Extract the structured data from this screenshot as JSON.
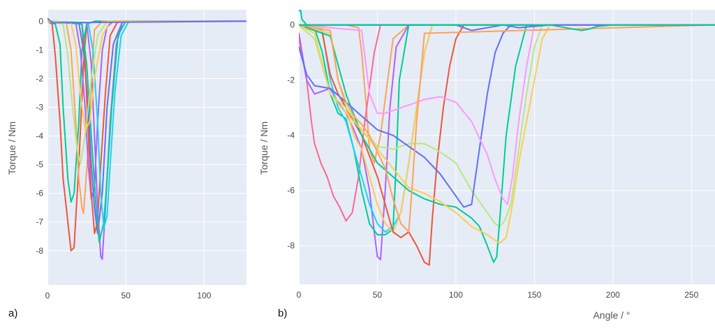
{
  "figure": {
    "panels": [
      {
        "tag": "a)"
      },
      {
        "tag": "b)"
      }
    ]
  },
  "colors": {
    "plot_bg": "#e5ecf6",
    "grid": "#ffffff",
    "palette": [
      "#636efa",
      "#ef553b",
      "#00cc96",
      "#ab63fa",
      "#ffa15a",
      "#19d3f3",
      "#ff6692",
      "#b6e880",
      "#ff97ff",
      "#fecb52"
    ]
  },
  "chart_data": [
    {
      "type": "line",
      "panel": "a)",
      "title": "",
      "xlabel": "",
      "ylabel": "Torque / Nm",
      "xlim": [
        0,
        127
      ],
      "ylim": [
        -9.2,
        0.4
      ],
      "xticks": [
        0,
        50,
        100
      ],
      "yticks": [
        0,
        -1,
        -2,
        -3,
        -4,
        -5,
        -6,
        -7,
        -8
      ],
      "grid": true,
      "legend": "none",
      "series": [
        {
          "color": "#ef553b",
          "x": [
            0,
            3,
            5,
            8,
            10,
            13,
            15,
            17,
            20,
            23,
            25,
            30,
            60,
            127
          ],
          "y": [
            0,
            -0.1,
            -1.2,
            -3.5,
            -5.5,
            -7,
            -8,
            -7.9,
            -5,
            -1.5,
            -0.1,
            0,
            0,
            0
          ]
        },
        {
          "color": "#00cc96",
          "x": [
            0,
            5,
            8,
            10,
            13,
            15,
            17,
            20,
            22,
            25,
            30,
            60,
            127
          ],
          "y": [
            0,
            -0.1,
            -0.8,
            -3,
            -5.5,
            -6.3,
            -6,
            -3.5,
            -1,
            -0.1,
            0,
            0,
            0
          ]
        },
        {
          "color": "#ffa15a",
          "x": [
            0,
            12,
            15,
            18,
            20,
            22,
            23,
            26,
            28,
            30,
            35,
            60,
            127
          ],
          "y": [
            0,
            -0.05,
            -1,
            -3.5,
            -5.5,
            -6.5,
            -6.7,
            -4.5,
            -2,
            -0.3,
            0,
            0,
            0
          ]
        },
        {
          "color": "#ab63fa",
          "x": [
            0,
            18,
            21,
            24,
            26,
            28,
            30,
            32,
            35,
            38,
            42,
            60,
            127
          ],
          "y": [
            0,
            -0.05,
            -1,
            -3,
            -5,
            -6.2,
            -5.8,
            -3.5,
            -1,
            -0.2,
            0,
            0,
            0
          ]
        },
        {
          "color": "#636efa",
          "x": [
            0,
            20,
            23,
            26,
            28,
            30,
            32,
            35,
            38,
            42,
            48,
            60,
            127
          ],
          "y": [
            0,
            -0.05,
            -1,
            -3,
            -5,
            -6.5,
            -7.4,
            -6,
            -3,
            -0.8,
            0,
            0,
            0
          ]
        },
        {
          "color": "#ef553b",
          "x": [
            0,
            22,
            24,
            26,
            28,
            30,
            32,
            34,
            37,
            40,
            45,
            60,
            127
          ],
          "y": [
            0,
            -0.1,
            -1.5,
            -3.8,
            -6,
            -7.4,
            -7,
            -5,
            -2.5,
            -0.5,
            0,
            0,
            0
          ]
        },
        {
          "color": "#ab63fa",
          "x": [
            0,
            25,
            28,
            30,
            32,
            34,
            35,
            37,
            40,
            44,
            48,
            60,
            127
          ],
          "y": [
            0,
            -0.05,
            -1.5,
            -4,
            -6.5,
            -8.2,
            -8.3,
            -6.5,
            -3.5,
            -0.8,
            0,
            0,
            0
          ]
        },
        {
          "color": "#00cc96",
          "x": [
            0,
            22,
            25,
            28,
            31,
            33,
            36,
            38,
            41,
            45,
            50,
            60,
            127
          ],
          "y": [
            0,
            -0.1,
            -1.5,
            -4,
            -6.5,
            -7.7,
            -7,
            -5.5,
            -3,
            -0.5,
            0,
            0,
            0
          ]
        },
        {
          "color": "#19d3f3",
          "x": [
            0,
            26,
            29,
            32,
            34,
            36,
            38,
            40,
            43,
            47,
            52,
            60,
            127
          ],
          "y": [
            0,
            -0.05,
            -1,
            -3.5,
            -6,
            -7.2,
            -6.8,
            -5,
            -2.5,
            -0.5,
            0,
            0,
            0
          ]
        },
        {
          "color": "#b6e880",
          "x": [
            0,
            10,
            13,
            16,
            19,
            21,
            24,
            28,
            32,
            38,
            127
          ],
          "y": [
            0,
            -0.1,
            -1.2,
            -3,
            -4.5,
            -5,
            -4,
            -2,
            -0.5,
            0,
            0
          ]
        },
        {
          "color": "#fecb52",
          "x": [
            0,
            15,
            18,
            21,
            24,
            27,
            30,
            35,
            40,
            127
          ],
          "y": [
            0,
            -0.05,
            -0.8,
            -2.5,
            -3.8,
            -3.5,
            -2,
            -0.5,
            0,
            0
          ]
        },
        {
          "color": "#636efa",
          "x": [
            0,
            2,
            4,
            127
          ],
          "y": [
            0.1,
            0,
            -0.05,
            0
          ]
        }
      ]
    },
    {
      "type": "line",
      "panel": "b)",
      "title": "",
      "xlabel": "Angle / °",
      "ylabel": "Torque / Nm",
      "xlim": [
        0,
        265
      ],
      "ylim": [
        -9.4,
        0.55
      ],
      "xticks": [
        0,
        50,
        100,
        150,
        200,
        250
      ],
      "yticks": [
        0,
        -2,
        -4,
        -6,
        -8
      ],
      "grid": true,
      "legend": "none",
      "series": [
        {
          "color": "#00cc96",
          "x": [
            0,
            1,
            2,
            5,
            10,
            20,
            30,
            265
          ],
          "y": [
            0.5,
            0.6,
            0.2,
            0,
            0,
            0,
            0,
            0
          ]
        },
        {
          "color": "#ffa15a",
          "x": [
            0,
            10,
            20,
            30,
            38,
            40,
            43,
            45,
            48,
            52,
            60,
            70,
            265
          ],
          "y": [
            0,
            -0.05,
            0,
            0,
            -0.1,
            -1,
            -3,
            -4.5,
            -5,
            -4,
            -0.5,
            0,
            0
          ]
        },
        {
          "color": "#ff6692",
          "x": [
            0,
            5,
            8,
            10,
            14,
            18,
            22,
            26,
            30,
            34,
            38,
            42,
            48,
            52,
            55,
            60,
            265
          ],
          "y": [
            -0.5,
            -2,
            -3.5,
            -4.3,
            -5,
            -5.5,
            -6.2,
            -6.6,
            -7.1,
            -6.8,
            -5.5,
            -3.5,
            -1,
            0,
            0,
            0,
            0
          ]
        },
        {
          "color": "#ab63fa",
          "x": [
            0,
            5,
            10,
            15,
            20,
            25,
            30,
            35,
            40,
            45,
            48,
            50,
            52,
            55,
            58,
            62,
            70,
            80,
            265
          ],
          "y": [
            -0.3,
            -2,
            -2.5,
            -2.4,
            -2.3,
            -2.8,
            -3.2,
            -3.8,
            -4.5,
            -6,
            -7.5,
            -8.4,
            -8.5,
            -6,
            -3,
            -0.8,
            0,
            0,
            0
          ]
        },
        {
          "color": "#00cc96",
          "x": [
            0,
            10,
            15,
            20,
            25,
            30,
            35,
            40,
            45,
            50,
            55,
            60,
            62,
            64,
            70,
            265
          ],
          "y": [
            0,
            -0.1,
            -1,
            -2.5,
            -3.2,
            -3.4,
            -4.5,
            -6,
            -7.2,
            -7.6,
            -7.6,
            -7.4,
            -5,
            -2,
            0,
            0
          ]
        },
        {
          "color": "#19d3f3",
          "x": [
            0,
            15,
            20,
            25,
            30,
            35,
            40,
            45,
            50,
            55,
            60,
            65,
            70,
            75,
            80,
            85,
            265
          ],
          "y": [
            0,
            -0.2,
            -2,
            -3,
            -3.5,
            -4.5,
            -5.5,
            -6.5,
            -7.2,
            -7.5,
            -7.3,
            -6.8,
            -5,
            -3,
            -1,
            0,
            0
          ]
        },
        {
          "color": "#fecb52",
          "x": [
            0,
            20,
            25,
            30,
            35,
            40,
            45,
            50,
            55,
            60,
            65,
            70,
            75,
            80,
            85,
            265
          ],
          "y": [
            0,
            -0.3,
            -2,
            -3,
            -4,
            -4.5,
            -5.5,
            -6.5,
            -7.2,
            -7.5,
            -6.8,
            -5,
            -3,
            -1,
            0,
            0
          ]
        },
        {
          "color": "#ef553b",
          "x": [
            0,
            15,
            20,
            25,
            30,
            40,
            50,
            55,
            60,
            65,
            70,
            75,
            80,
            83,
            85,
            88,
            92,
            96,
            100,
            105,
            265
          ],
          "y": [
            0,
            -0.3,
            -1.8,
            -2.5,
            -3,
            -4,
            -5.5,
            -6.5,
            -7.5,
            -7.7,
            -7.5,
            -8,
            -8.6,
            -8.7,
            -7,
            -5,
            -3,
            -1.5,
            -0.5,
            0,
            0
          ]
        },
        {
          "color": "#b6e880",
          "x": [
            0,
            10,
            20,
            30,
            40,
            50,
            60,
            70,
            80,
            90,
            100,
            110,
            120,
            125,
            128,
            131,
            135,
            140,
            145,
            150,
            155,
            265
          ],
          "y": [
            0,
            -0.5,
            -2.5,
            -3,
            -3.8,
            -4.4,
            -4.5,
            -4.3,
            -4.3,
            -4.6,
            -5,
            -6,
            -6.8,
            -7.2,
            -7.3,
            -7.1,
            -6.5,
            -4.5,
            -2.5,
            -0.8,
            0,
            0
          ]
        },
        {
          "color": "#00cc96",
          "x": [
            0,
            20,
            30,
            40,
            50,
            60,
            70,
            80,
            90,
            100,
            110,
            115,
            120,
            124,
            126,
            128,
            132,
            138,
            145,
            265
          ],
          "y": [
            0,
            -0.4,
            -2.5,
            -4,
            -5,
            -5.5,
            -6,
            -6.3,
            -6.5,
            -6.6,
            -7,
            -7.3,
            -8,
            -8.6,
            -8.4,
            -7,
            -4,
            -1.5,
            0,
            0
          ]
        },
        {
          "color": "#fecb52",
          "x": [
            0,
            10,
            20,
            30,
            40,
            50,
            60,
            70,
            80,
            90,
            100,
            110,
            120,
            125,
            128,
            132,
            136,
            140,
            145,
            150,
            155,
            160,
            265
          ],
          "y": [
            0,
            -0.3,
            -2.5,
            -3.2,
            -3.8,
            -4.5,
            -5.2,
            -5.9,
            -6.1,
            -6.4,
            -6.8,
            -7.3,
            -7.6,
            -7.8,
            -7.9,
            -7.7,
            -6.5,
            -5,
            -3.5,
            -2,
            -0.5,
            0,
            0
          ]
        },
        {
          "color": "#636efa",
          "x": [
            0,
            5,
            10,
            20,
            30,
            40,
            50,
            60,
            70,
            80,
            90,
            100,
            105,
            110,
            115,
            120,
            125,
            130,
            135,
            265
          ],
          "y": [
            -0.8,
            -1.8,
            -2.2,
            -2.3,
            -2.8,
            -3.3,
            -3.8,
            -4,
            -4.4,
            -4.8,
            -5.4,
            -6.2,
            -6.6,
            -6.5,
            -4.5,
            -2.5,
            -1,
            -0.3,
            0,
            0
          ]
        },
        {
          "color": "#ff97ff",
          "x": [
            0,
            40,
            45,
            50,
            55,
            60,
            65,
            70,
            80,
            90,
            100,
            110,
            120,
            125,
            130,
            133,
            136,
            140,
            145,
            150,
            265
          ],
          "y": [
            0,
            -0.2,
            -2.5,
            -3.2,
            -3.2,
            -3.1,
            -3,
            -2.9,
            -2.7,
            -2.6,
            -2.8,
            -3.5,
            -4.7,
            -5.6,
            -6.3,
            -6.5,
            -5.5,
            -3.5,
            -1.5,
            0,
            0
          ]
        },
        {
          "color": "#ffa15a",
          "x": [
            0,
            20,
            25,
            30,
            35,
            40,
            45,
            50,
            55,
            60,
            65,
            70,
            72,
            75,
            80,
            265
          ],
          "y": [
            0,
            -0.2,
            -2,
            -2.8,
            -3.3,
            -3.6,
            -4,
            -4.6,
            -5.2,
            -6.3,
            -7.2,
            -7.5,
            -6,
            -3.5,
            -0.3,
            0
          ]
        },
        {
          "color": "#636efa",
          "x": [
            0,
            100,
            110,
            120,
            130,
            140,
            160,
            180,
            200,
            265
          ],
          "y": [
            0,
            0,
            -0.2,
            -0.1,
            0,
            -0.1,
            0,
            0,
            0,
            0
          ]
        },
        {
          "color": "#00cc96",
          "x": [
            0,
            160,
            170,
            180,
            185,
            190,
            200,
            265
          ],
          "y": [
            0,
            0,
            -0.1,
            -0.2,
            -0.15,
            -0.05,
            0,
            0
          ]
        }
      ]
    }
  ]
}
